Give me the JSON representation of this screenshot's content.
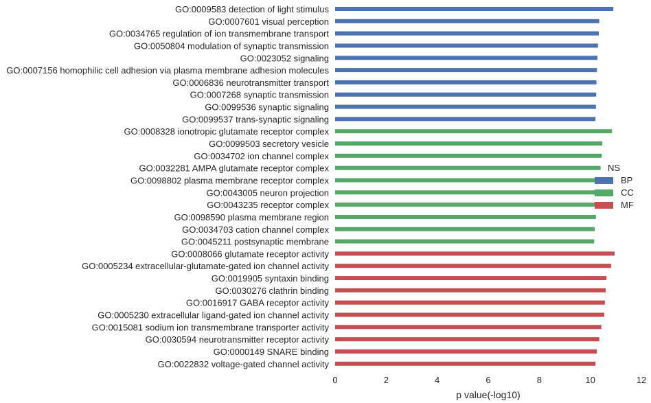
{
  "chart_data": {
    "type": "bar",
    "orientation": "horizontal",
    "xlabel": "p value(-log10)",
    "xlim": [
      0,
      12
    ],
    "xticks": [
      0,
      2,
      4,
      6,
      8,
      10,
      12
    ],
    "grid": false,
    "legend": {
      "title": "NS",
      "placement": "right",
      "entries": [
        {
          "name": "BP",
          "color": "#4c72b0"
        },
        {
          "name": "CC",
          "color": "#55a868"
        },
        {
          "name": "MF",
          "color": "#c44e52"
        }
      ]
    },
    "series": [
      {
        "name": "BP",
        "color": "#4c72b0",
        "categories": [
          "GO:0009583 detection of light stimulus",
          "GO:0007601 visual perception",
          "GO:0034765 regulation of ion transmembrane transport",
          "GO:0050804 modulation of synaptic transmission",
          "GO:0023052 signaling",
          "GO:0007156 homophilic cell adhesion via plasma membrane adhesion molecules",
          "GO:0006836 neurotransmitter transport",
          "GO:0007268 synaptic transmission",
          "GO:0099536 synaptic signaling",
          "GO:0099537 trans-synaptic signaling"
        ],
        "values": [
          10.9,
          10.35,
          10.33,
          10.3,
          10.28,
          10.26,
          10.24,
          10.23,
          10.22,
          10.2
        ]
      },
      {
        "name": "CC",
        "color": "#55a868",
        "categories": [
          "GO:0008328 ionotropic glutamate receptor complex",
          "GO:0099503 secretory vesicle",
          "GO:0034702 ion channel complex",
          "GO:0032281 AMPA glutamate receptor complex",
          "GO:0098802 plasma membrane receptor complex",
          "GO:0043005 neuron projection",
          "GO:0043235 receptor complex",
          "GO:0098590 plasma membrane region",
          "GO:0034703 cation channel complex",
          "GO:0045211 postsynaptic membrane"
        ],
        "values": [
          10.85,
          10.47,
          10.45,
          10.4,
          10.33,
          10.3,
          10.27,
          10.22,
          10.17,
          10.15
        ]
      },
      {
        "name": "MF",
        "color": "#c44e52",
        "categories": [
          "GO:0008066 glutamate receptor activity",
          "GO:0005234 extracellular-glutamate-gated ion channel activity",
          "GO:0019905 syntaxin binding",
          "GO:0030276 clathrin binding",
          "GO:0016917 GABA receptor activity",
          "GO:0005230 extracellular ligand-gated ion channel activity",
          "GO:0015081 sodium ion transmembrane transporter activity",
          "GO:0030594 neurotransmitter receptor activity",
          "GO:0000149 SNARE binding",
          "GO:0022832 voltage-gated channel activity"
        ],
        "values": [
          10.95,
          10.82,
          10.63,
          10.6,
          10.57,
          10.55,
          10.43,
          10.35,
          10.25,
          10.2
        ]
      }
    ]
  }
}
